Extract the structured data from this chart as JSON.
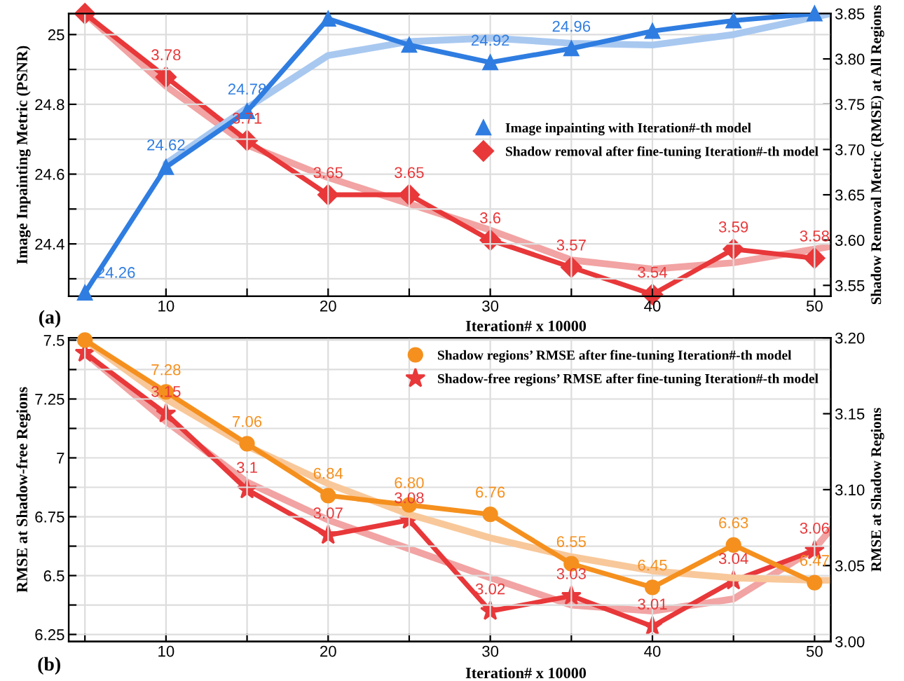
{
  "chart_data": [
    {
      "type": "line",
      "xlabel": "Iteration# x 10000",
      "ylabel": "Image Inpainting Metric (PSNR)",
      "y2label": "Shadow Removal Metric (RMSE) at All Regions",
      "annotations": [
        "(a)"
      ],
      "xlim": [
        4,
        51
      ],
      "xticks": [
        {
          "value": 5,
          "label": null
        },
        10,
        {
          "value": 15,
          "label": null
        },
        20,
        {
          "value": 25,
          "label": null
        },
        30,
        {
          "value": 35,
          "label": null
        },
        40,
        {
          "value": 45,
          "label": null
        },
        50
      ],
      "ylim": [
        24.25,
        25.06
      ],
      "yticks": [
        {
          "value": 24.3,
          "label": null
        },
        24.4,
        {
          "value": 24.5,
          "label": null
        },
        24.6,
        {
          "value": 24.7,
          "label": null
        },
        24.8,
        {
          "value": 24.9,
          "label": null
        },
        25
      ],
      "y2lim": [
        3.538,
        3.85
      ],
      "y2ticks": [
        "3.55",
        "3.60",
        "3.65",
        "3.70",
        "3.75",
        "3.80",
        "3.85"
      ],
      "grid": true,
      "legend": "right",
      "series": [
        {
          "color": "#a8c8f0",
          "marker": "none",
          "x": [
            10,
            15,
            20,
            25,
            30,
            35,
            40,
            45,
            50,
            51
          ],
          "values": [
            24.63,
            24.79,
            24.94,
            24.98,
            24.99,
            24.975,
            24.97,
            25.0,
            25.05,
            25.06
          ]
        },
        {
          "color": "#f2a3a3",
          "marker": "none",
          "axis": "y2",
          "x": [
            5,
            10,
            15,
            20,
            25,
            30,
            35,
            40,
            45,
            50,
            51
          ],
          "values": [
            3.85,
            3.77,
            3.705,
            3.669,
            3.64,
            3.611,
            3.578,
            3.568,
            3.575,
            3.59,
            3.593
          ]
        },
        {
          "name": "Image inpainting with Iteration#-th model",
          "color": "#2f7de1",
          "marker": "triangle",
          "x": [
            5,
            10,
            15,
            20,
            25,
            30,
            35,
            40,
            45,
            50
          ],
          "values": [
            24.26,
            24.62,
            24.78,
            25.045,
            24.97,
            24.92,
            24.96,
            25.01,
            25.04,
            25.06
          ],
          "value_labels": [
            "24.26",
            "24.62",
            "24.78",
            null,
            null,
            "24.92",
            "24.96",
            null,
            null,
            null
          ]
        },
        {
          "name": "Shadow removal after fine-tuning Iteration#-th model",
          "color": "#e8383a",
          "marker": "diamond",
          "axis": "y2",
          "x": [
            5,
            10,
            15,
            20,
            25,
            30,
            35,
            40,
            45,
            50
          ],
          "values": [
            3.85,
            3.78,
            3.71,
            3.65,
            3.65,
            3.6,
            3.57,
            3.54,
            3.59,
            3.58
          ],
          "value_labels": [
            null,
            "3.78",
            "3.71",
            "3.65",
            "3.65",
            "3.6",
            "3.57",
            "3.54",
            "3.59",
            "3.58"
          ]
        }
      ]
    },
    {
      "type": "line",
      "xlabel": "Iteration# x 10000",
      "ylabel": "RMSE at Shadow-free Regions",
      "y2label": "RMSE at Shadow Regions",
      "annotations": [
        "(b)"
      ],
      "xlim": [
        4,
        51
      ],
      "xticks": [
        {
          "value": 5,
          "label": null
        },
        10,
        {
          "value": 15,
          "label": null
        },
        20,
        {
          "value": 25,
          "label": null
        },
        30,
        {
          "value": 35,
          "label": null
        },
        40,
        {
          "value": 45,
          "label": null
        },
        50
      ],
      "ylim": [
        6.22,
        7.51
      ],
      "yticks": [
        6.25,
        {
          "value": 6.375,
          "label": null
        },
        6.5,
        {
          "value": 6.625,
          "label": null
        },
        6.75,
        {
          "value": 6.875,
          "label": null
        },
        7,
        {
          "value": 7.125,
          "label": null
        },
        7.25,
        {
          "value": 7.375,
          "label": null
        },
        7.5
      ],
      "y2lim": [
        3.0,
        3.2
      ],
      "y2ticks": [
        "3.00",
        "3.05",
        "3.10",
        "3.15",
        "3.20"
      ],
      "grid": true,
      "legend": "top right",
      "series": [
        {
          "color": "#f8c89a",
          "marker": "none",
          "x": [
            5,
            10,
            15,
            20,
            25,
            30,
            35,
            40,
            45,
            50,
            51
          ],
          "values": [
            7.5,
            7.25,
            7.05,
            6.89,
            6.76,
            6.66,
            6.58,
            6.52,
            6.49,
            6.48,
            6.48
          ]
        },
        {
          "color": "#f2a3a3",
          "marker": "none",
          "axis": "y2",
          "x": [
            5,
            10,
            15,
            20,
            25,
            30,
            35,
            40,
            45,
            50,
            51
          ],
          "values": [
            3.19,
            3.145,
            3.105,
            3.08,
            3.061,
            3.042,
            3.024,
            3.02,
            3.028,
            3.061,
            3.074
          ]
        },
        {
          "name": "Shadow regions’ RMSE after fine-tuning Iteration#-th model",
          "color": "#f5901e",
          "marker": "circle",
          "x": [
            5,
            10,
            15,
            20,
            25,
            30,
            35,
            40,
            45,
            50
          ],
          "values": [
            7.5,
            7.28,
            7.06,
            6.84,
            6.8,
            6.76,
            6.55,
            6.45,
            6.63,
            6.47
          ],
          "value_labels": [
            null,
            "7.28",
            "7.06",
            "6.84",
            "6.80",
            "6.76",
            "6.55",
            "6.45",
            "6.63",
            "6.47"
          ]
        },
        {
          "name": "Shadow-free regions’ RMSE after fine-tuning Iteration#-th model",
          "color": "#e8383a",
          "marker": "star",
          "axis": "y2",
          "x": [
            5,
            10,
            15,
            20,
            25,
            30,
            35,
            40,
            45,
            50
          ],
          "values": [
            3.19,
            3.15,
            3.1,
            3.07,
            3.08,
            3.02,
            3.03,
            3.01,
            3.04,
            3.06
          ],
          "value_labels": [
            null,
            "3.15",
            "3.1",
            "3.07",
            "3.08",
            "3.02",
            "3.03",
            "3.01",
            "3.04",
            "3.06"
          ]
        }
      ]
    }
  ]
}
